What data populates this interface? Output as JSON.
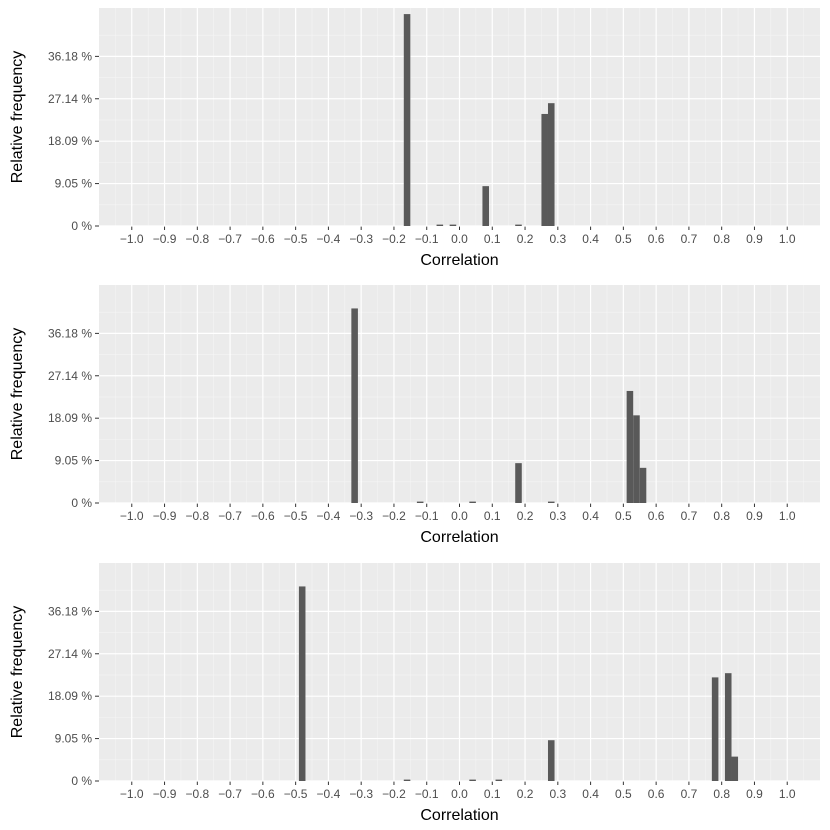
{
  "chart_data": [
    {
      "type": "bar",
      "xlabel": "Correlation",
      "ylabel": "Relative frequency",
      "xlim": [
        -1.1,
        1.1
      ],
      "ylim": [
        0,
        46.5
      ],
      "bin_width": 0.02,
      "x_ticks": [
        "−1.0",
        "−0.9",
        "−0.8",
        "−0.7",
        "−0.6",
        "−0.5",
        "−0.4",
        "−0.3",
        "−0.2",
        "−0.1",
        "0.0",
        "0.1",
        "0.2",
        "0.3",
        "0.4",
        "0.5",
        "0.6",
        "0.7",
        "0.8",
        "0.9",
        "1.0"
      ],
      "y_ticks": [
        {
          "value": 0,
          "label": "0 %"
        },
        {
          "value": 9.05,
          "label": "9.05 %"
        },
        {
          "value": 18.09,
          "label": "18.09 %"
        },
        {
          "value": 27.14,
          "label": "27.14 %"
        },
        {
          "value": 36.18,
          "label": "36.18 %"
        }
      ],
      "grid": true,
      "bars": [
        {
          "x": -0.16,
          "value": 45.2
        },
        {
          "x": -0.06,
          "value": 0.3
        },
        {
          "x": -0.02,
          "value": 0.3
        },
        {
          "x": 0.08,
          "value": 8.5
        },
        {
          "x": 0.18,
          "value": 0.3
        },
        {
          "x": 0.26,
          "value": 23.9
        },
        {
          "x": 0.28,
          "value": 26.2
        }
      ]
    },
    {
      "type": "bar",
      "xlabel": "Correlation",
      "ylabel": "Relative frequency",
      "xlim": [
        -1.1,
        1.1
      ],
      "ylim": [
        0,
        46.5
      ],
      "bin_width": 0.02,
      "x_ticks": [
        "−1.0",
        "−0.9",
        "−0.8",
        "−0.7",
        "−0.6",
        "−0.5",
        "−0.4",
        "−0.3",
        "−0.2",
        "−0.1",
        "0.0",
        "0.1",
        "0.2",
        "0.3",
        "0.4",
        "0.5",
        "0.6",
        "0.7",
        "0.8",
        "0.9",
        "1.0"
      ],
      "y_ticks": [
        {
          "value": 0,
          "label": "0 %"
        },
        {
          "value": 9.05,
          "label": "9.05 %"
        },
        {
          "value": 18.09,
          "label": "18.09 %"
        },
        {
          "value": 27.14,
          "label": "27.14 %"
        },
        {
          "value": 36.18,
          "label": "36.18 %"
        }
      ],
      "grid": true,
      "bars": [
        {
          "x": -0.32,
          "value": 41.5
        },
        {
          "x": -0.12,
          "value": 0.3
        },
        {
          "x": 0.04,
          "value": 0.3
        },
        {
          "x": 0.18,
          "value": 8.5
        },
        {
          "x": 0.28,
          "value": 0.3
        },
        {
          "x": 0.52,
          "value": 23.9
        },
        {
          "x": 0.54,
          "value": 18.7
        },
        {
          "x": 0.56,
          "value": 7.5
        }
      ]
    },
    {
      "type": "bar",
      "xlabel": "Correlation",
      "ylabel": "Relative frequency",
      "xlim": [
        -1.1,
        1.1
      ],
      "ylim": [
        0,
        46.5
      ],
      "bin_width": 0.02,
      "x_ticks": [
        "−1.0",
        "−0.9",
        "−0.8",
        "−0.7",
        "−0.6",
        "−0.5",
        "−0.4",
        "−0.3",
        "−0.2",
        "−0.1",
        "0.0",
        "0.1",
        "0.2",
        "0.3",
        "0.4",
        "0.5",
        "0.6",
        "0.7",
        "0.8",
        "0.9",
        "1.0"
      ],
      "y_ticks": [
        {
          "value": 0,
          "label": "0 %"
        },
        {
          "value": 9.05,
          "label": "9.05 %"
        },
        {
          "value": 18.09,
          "label": "18.09 %"
        },
        {
          "value": 27.14,
          "label": "27.14 %"
        },
        {
          "value": 36.18,
          "label": "36.18 %"
        }
      ],
      "grid": true,
      "bars": [
        {
          "x": -0.48,
          "value": 41.5
        },
        {
          "x": -0.16,
          "value": 0.3
        },
        {
          "x": 0.04,
          "value": 0.3
        },
        {
          "x": 0.12,
          "value": 0.3
        },
        {
          "x": 0.28,
          "value": 8.7
        },
        {
          "x": 0.78,
          "value": 22.1
        },
        {
          "x": 0.82,
          "value": 23.0
        },
        {
          "x": 0.84,
          "value": 5.2
        }
      ]
    }
  ],
  "colors": {
    "panel_bg": "#ebebeb",
    "grid_major": "#ffffff",
    "grid_minor": "#f5f5f5",
    "bar_fill": "#595959",
    "tick_text": "#4d4d4d",
    "title_text": "#000000"
  }
}
